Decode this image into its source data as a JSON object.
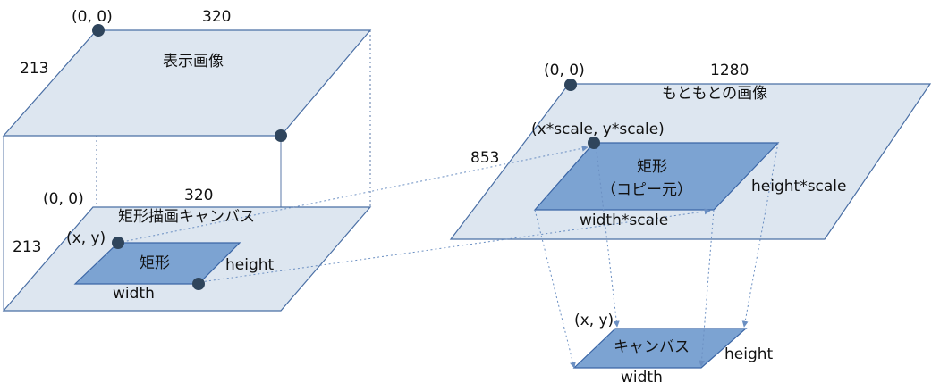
{
  "colors": {
    "plane_fill": "#dde6f0",
    "plane_stroke": "#4a6fa5",
    "rect_fill": "#7ca3d2",
    "rect_stroke": "#3b66a6",
    "dot": "#2f455c",
    "guide": "#6b8fc2"
  },
  "display_image": {
    "title": "表示画像",
    "origin": "(0, 0)",
    "width_label": "320",
    "height_label": "213"
  },
  "canvas_plane": {
    "title": "矩形描画キャンバス",
    "origin": "(0, 0)",
    "width_label": "320",
    "height_label": "213",
    "rect_label": "矩形",
    "xy_label": "(x, y)",
    "rect_width_label": "width",
    "rect_height_label": "height"
  },
  "original_image": {
    "title": "もともとの画像",
    "origin": "(0, 0)",
    "width_label": "1280",
    "height_label": "853",
    "rect_label_line1": "矩形",
    "rect_label_line2": "（コピー元）",
    "xy_label": "(x*scale, y*scale)",
    "rect_width_label": "width*scale",
    "rect_height_label": "height*scale"
  },
  "output_canvas": {
    "title": "キャンバス",
    "xy_label": "(x, y)",
    "width_label": "width",
    "height_label": "height"
  }
}
